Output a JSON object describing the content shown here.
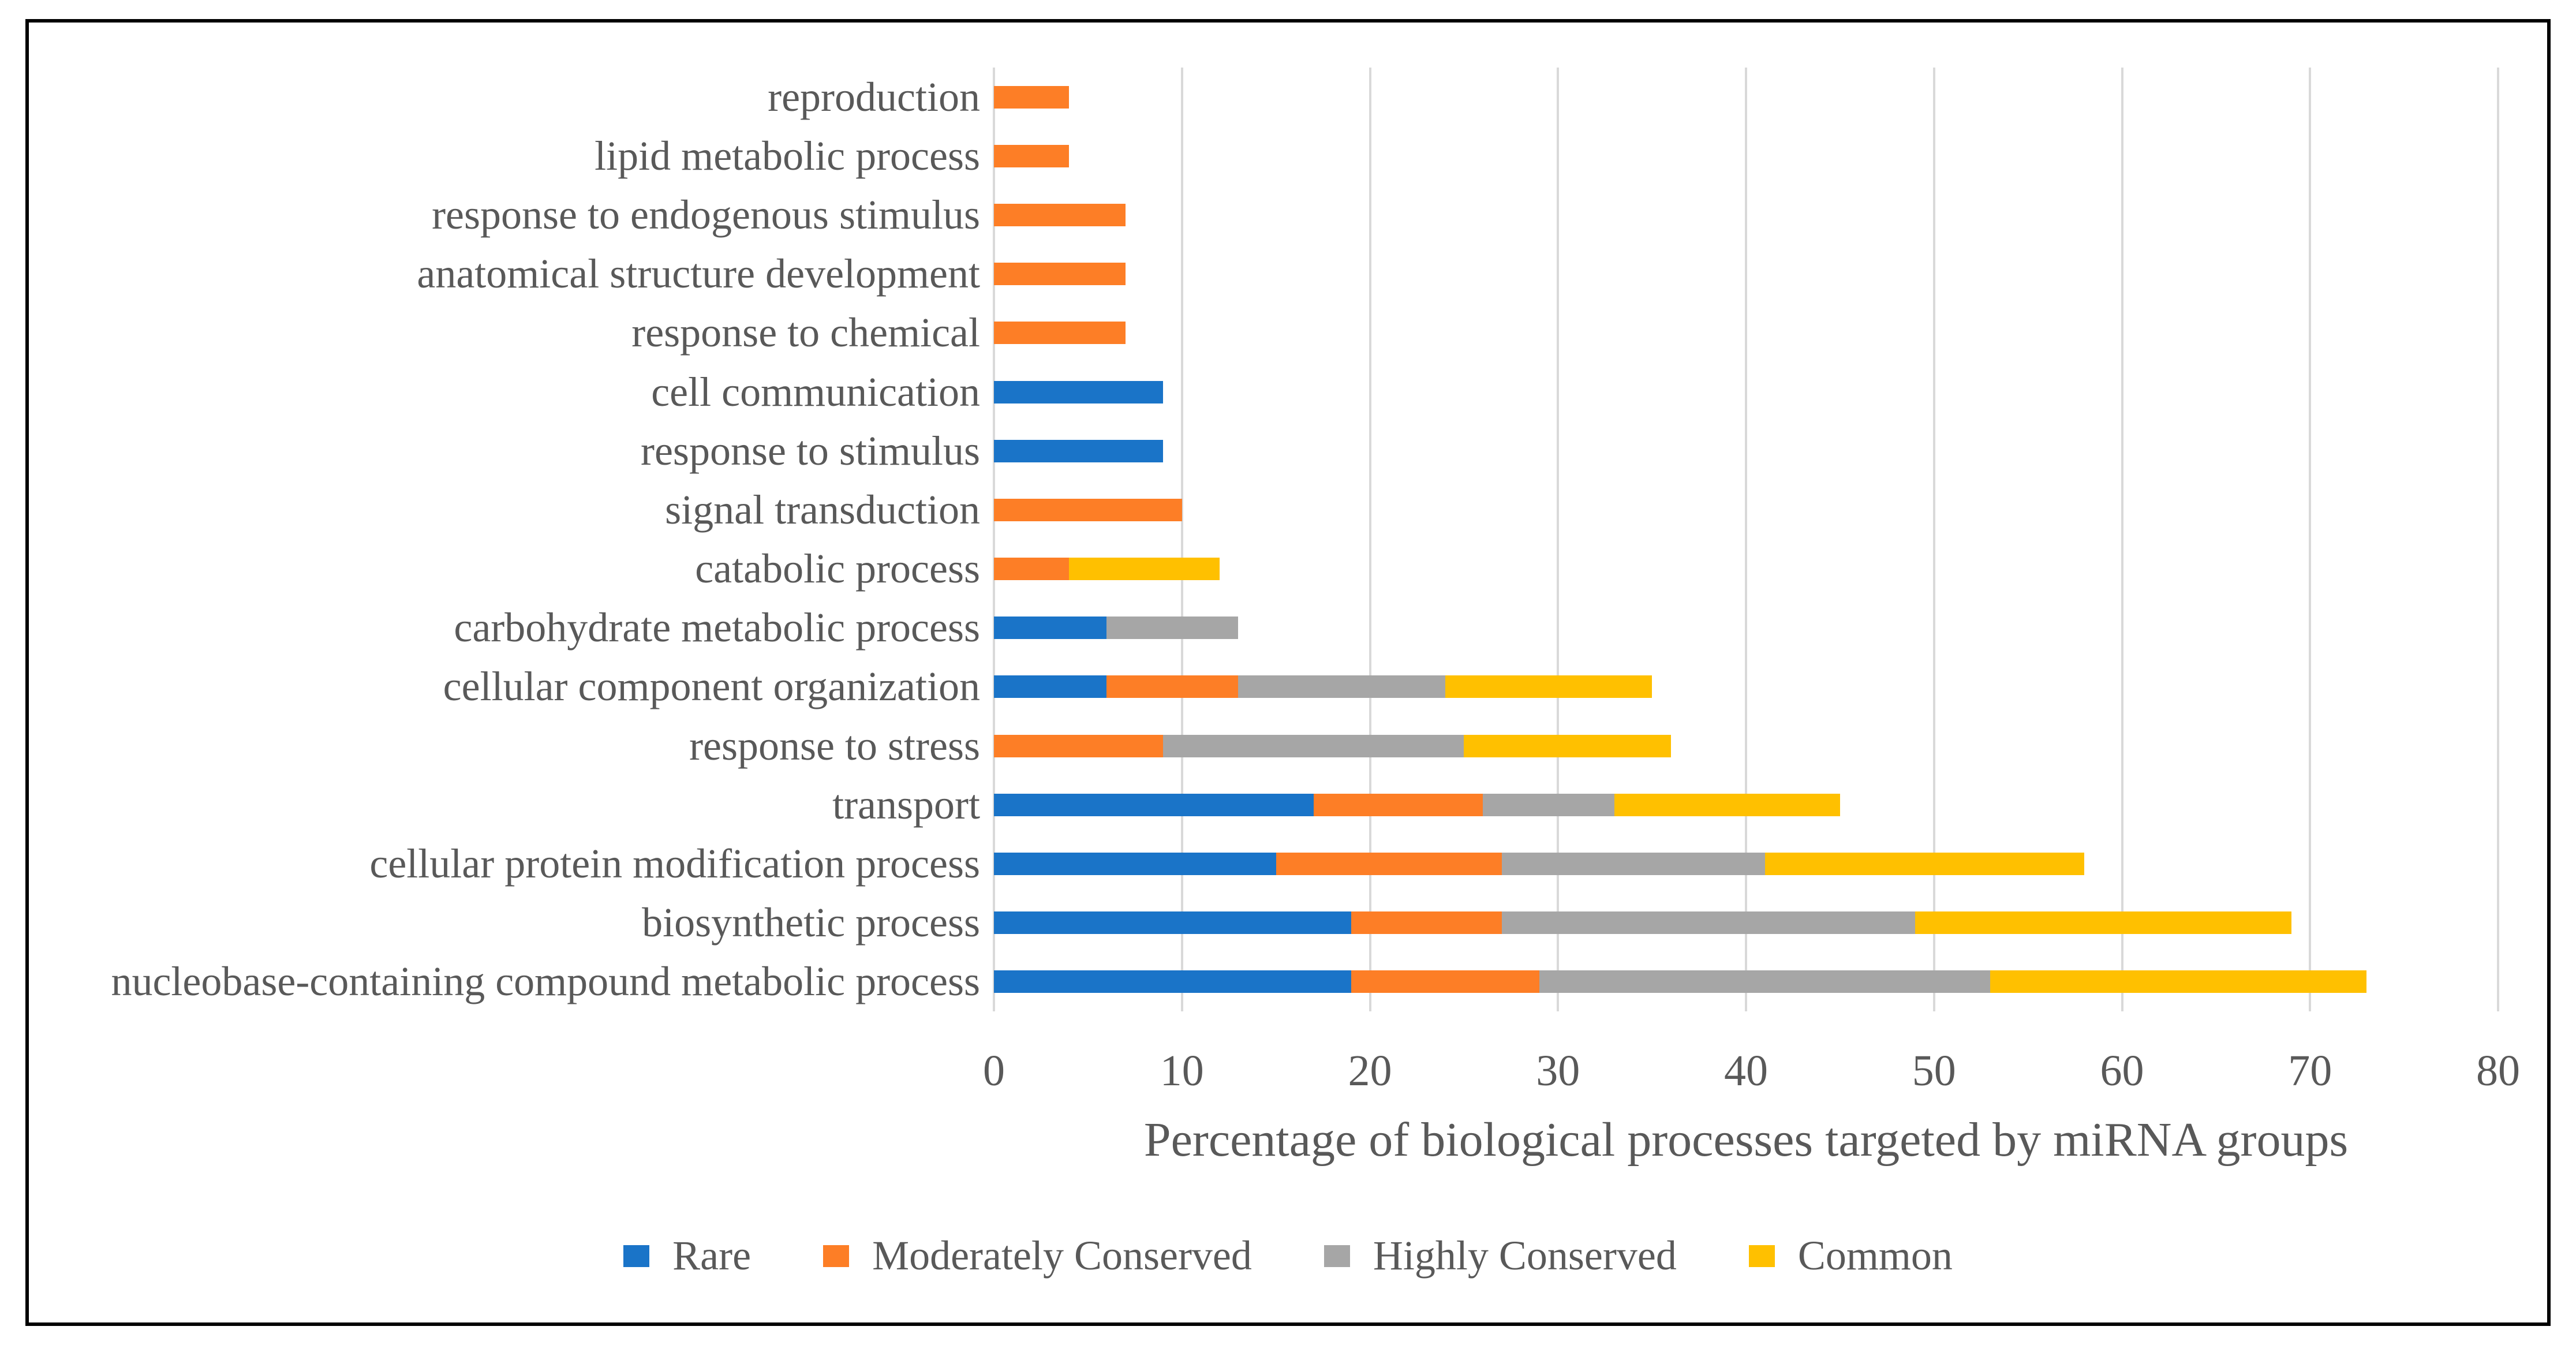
{
  "figure": {
    "background": "#FFFFFF",
    "border_color": "#000000",
    "text_color": "#595959",
    "gridline_color": "#D9D9D9"
  },
  "chart_data": {
    "type": "bar",
    "orientation": "horizontal",
    "stacked": true,
    "grid": true,
    "legend_position": "bottom",
    "xlabel": "Percentage of biological processes targeted by miRNA groups",
    "xlim": [
      0,
      80
    ],
    "x_ticks": [
      0,
      10,
      20,
      30,
      40,
      50,
      60,
      70,
      80
    ],
    "categories": [
      "reproduction",
      "lipid metabolic process",
      "response to endogenous stimulus",
      "anatomical structure development",
      "response to chemical",
      "cell communication",
      "response to stimulus",
      "signal transduction",
      "catabolic process",
      "carbohydrate metabolic process",
      "cellular component organization",
      "response to stress",
      "transport",
      "cellular protein modification process",
      "biosynthetic process",
      "nucleobase-containing compound metabolic process"
    ],
    "series": [
      {
        "name": "Rare",
        "color": "#1A74C8",
        "values": [
          0,
          0,
          0,
          0,
          0,
          9,
          9,
          0,
          0,
          6,
          6,
          0,
          17,
          15,
          19,
          19
        ]
      },
      {
        "name": "Moderately Conserved",
        "color": "#FD7E26",
        "values": [
          4,
          4,
          7,
          7,
          7,
          0,
          0,
          10,
          4,
          0,
          7,
          9,
          9,
          12,
          8,
          10
        ]
      },
      {
        "name": "Highly Conserved",
        "color": "#A6A6A6",
        "values": [
          0,
          0,
          0,
          0,
          0,
          0,
          0,
          0,
          0,
          7,
          11,
          16,
          7,
          14,
          22,
          24
        ]
      },
      {
        "name": "Common",
        "color": "#FFC000",
        "values": [
          0,
          0,
          0,
          0,
          0,
          0,
          0,
          0,
          8,
          0,
          11,
          11,
          12,
          17,
          20,
          20
        ]
      }
    ],
    "totals": [
      4,
      4,
      7,
      7,
      7,
      9,
      9,
      10,
      12,
      13,
      35,
      36,
      45,
      58,
      69,
      73
    ]
  }
}
